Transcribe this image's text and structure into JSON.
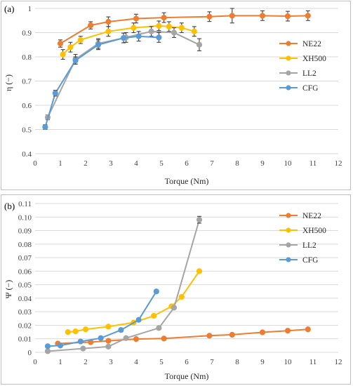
{
  "chart_data": [
    {
      "panel_label": "(a)",
      "type": "line",
      "xlabel": "Torque (Nm)",
      "ylabel": "η (−)",
      "xlim": [
        0,
        12
      ],
      "ylim": [
        0.4,
        1.0
      ],
      "xticks": [
        "0",
        "1",
        "2",
        "3",
        "4",
        "5",
        "6",
        "7",
        "8",
        "9",
        "10",
        "11",
        "12"
      ],
      "yticks": [
        "0.4",
        "0.5",
        "0.6",
        "0.7",
        "0.8",
        "0.9",
        "1"
      ],
      "grid": "horizontal",
      "legend": "right",
      "series": [
        {
          "name": "NE22",
          "color": "#ED7D31",
          "x": [
            1.0,
            2.2,
            2.9,
            4.0,
            5.1,
            6.9,
            7.8,
            9.0,
            10.0,
            10.8
          ],
          "y": [
            0.855,
            0.93,
            0.945,
            0.958,
            0.962,
            0.966,
            0.97,
            0.97,
            0.968,
            0.97
          ],
          "err": [
            0.015,
            0.015,
            0.02,
            0.018,
            0.02,
            0.02,
            0.03,
            0.02,
            0.02,
            0.02
          ]
        },
        {
          "name": "XH500",
          "color": "#FFC000",
          "x": [
            1.1,
            1.4,
            1.8,
            2.9,
            3.9,
            4.9,
            5.3,
            5.8,
            6.3
          ],
          "y": [
            0.81,
            0.84,
            0.87,
            0.905,
            0.92,
            0.928,
            0.925,
            0.92,
            0.905
          ],
          "err": [
            0.02,
            0.02,
            0.015,
            0.02,
            0.02,
            0.02,
            0.02,
            0.02,
            0.02
          ]
        },
        {
          "name": "LL2",
          "color": "#A5A5A5",
          "x": [
            0.5,
            1.6,
            2.5,
            3.6,
            4.6,
            5.5,
            6.5
          ],
          "y": [
            0.55,
            0.79,
            0.855,
            0.88,
            0.905,
            0.9,
            0.85
          ],
          "err": [
            0.01,
            0.02,
            0.02,
            0.02,
            0.02,
            0.02,
            0.025
          ]
        },
        {
          "name": "CFG",
          "color": "#5B9BD5",
          "x": [
            0.4,
            0.8,
            1.6,
            2.5,
            3.5,
            4.1,
            4.9
          ],
          "y": [
            0.51,
            0.65,
            0.785,
            0.85,
            0.878,
            0.885,
            0.88
          ],
          "err": [
            0.01,
            0.012,
            0.015,
            0.02,
            0.02,
            0.02,
            0.02
          ]
        }
      ]
    },
    {
      "panel_label": "(b)",
      "type": "line",
      "xlabel": "Torque (Nm)",
      "ylabel": "Ψ (−)",
      "xlim": [
        0,
        12
      ],
      "ylim": [
        0,
        0.11
      ],
      "xticks": [
        "0",
        "1",
        "2",
        "3",
        "4",
        "5",
        "6",
        "7",
        "8",
        "9",
        "10",
        "11",
        "12"
      ],
      "yticks": [
        "0",
        "0.01",
        "0.02",
        "0.03",
        "0.04",
        "0.05",
        "0.06",
        "0.07",
        "0.08",
        "0.09",
        "0.10",
        "0.11"
      ],
      "grid": "horizontal",
      "legend": "right",
      "series": [
        {
          "name": "NE22",
          "color": "#ED7D31",
          "x": [
            0.9,
            2.2,
            2.9,
            4.0,
            5.1,
            6.9,
            7.8,
            9.0,
            10.0,
            10.8
          ],
          "y": [
            0.0065,
            0.0075,
            0.0085,
            0.0098,
            0.0102,
            0.0123,
            0.013,
            0.0148,
            0.016,
            0.017
          ],
          "err": [
            0,
            0,
            0,
            0,
            0,
            0,
            0,
            0,
            0,
            0
          ]
        },
        {
          "name": "XH500",
          "color": "#FFC000",
          "x": [
            1.3,
            1.6,
            2.0,
            2.9,
            3.9,
            4.7,
            5.4,
            5.8,
            6.5
          ],
          "y": [
            0.015,
            0.0155,
            0.017,
            0.019,
            0.022,
            0.027,
            0.034,
            0.041,
            0.06
          ],
          "err": [
            0,
            0,
            0,
            0,
            0,
            0,
            0,
            0,
            0.0012
          ]
        },
        {
          "name": "LL2",
          "color": "#A5A5A5",
          "x": [
            0.5,
            1.9,
            2.9,
            3.6,
            4.9,
            5.5,
            6.5
          ],
          "y": [
            0.0008,
            0.0028,
            0.0042,
            0.0105,
            0.018,
            0.033,
            0.098
          ],
          "err": [
            0,
            0,
            0,
            0,
            0,
            0,
            0.0025
          ]
        },
        {
          "name": "CFG",
          "color": "#5B9BD5",
          "x": [
            0.5,
            1.0,
            1.8,
            2.6,
            3.4,
            4.1,
            4.8
          ],
          "y": [
            0.0045,
            0.005,
            0.008,
            0.0105,
            0.0165,
            0.024,
            0.045
          ],
          "err": [
            0,
            0,
            0,
            0,
            0,
            0,
            0.0008
          ]
        }
      ]
    }
  ]
}
